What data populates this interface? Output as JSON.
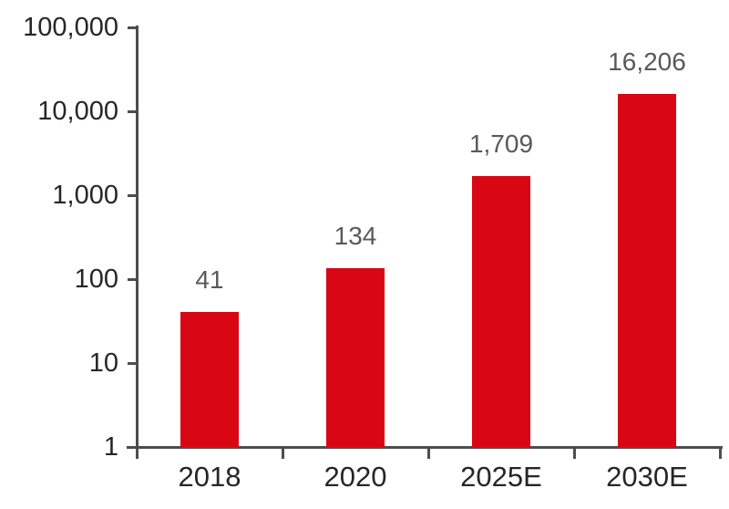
{
  "chart_data": {
    "type": "bar",
    "categories": [
      "2018",
      "2020",
      "2025E",
      "2030E"
    ],
    "values": [
      41,
      134,
      1709,
      16206
    ],
    "value_labels": [
      "41",
      "134",
      "1,709",
      "16,206"
    ],
    "y_axis": {
      "scale": "log10",
      "min": 1,
      "max": 100000,
      "tick_values": [
        1,
        10,
        100,
        1000,
        10000,
        100000
      ],
      "tick_labels": [
        "1",
        "10",
        "100",
        "1,000",
        "10,000",
        "100,000"
      ]
    },
    "xlabel": "",
    "ylabel": "",
    "grid": false,
    "legend_visible": false,
    "colors": {
      "bar": "#d90713",
      "value_label": "#595959",
      "axis": "#4d4d4d",
      "tick_label": "#262626",
      "background": "#ffffff"
    }
  }
}
